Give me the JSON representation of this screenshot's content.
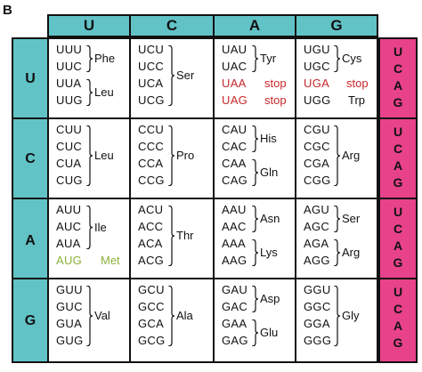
{
  "panel_label": "B",
  "column_headers": [
    "U",
    "C",
    "A",
    "G"
  ],
  "row_headers": [
    "U",
    "C",
    "A",
    "G"
  ],
  "third_position_labels": [
    "U",
    "C",
    "A",
    "G"
  ],
  "colors": {
    "header_teal": "#62c3c7",
    "third_pink": "#e8428a",
    "stop_red": "#c8262b",
    "start_green": "#8ab23a"
  },
  "cells": [
    [
      {
        "codons": [
          "UUU",
          "UUC",
          "UUA",
          "UUG"
        ],
        "groups": [
          {
            "range": [
              0,
              1
            ],
            "aa": "Phe"
          },
          {
            "range": [
              2,
              3
            ],
            "aa": "Leu"
          }
        ]
      },
      {
        "codons": [
          "UCU",
          "UCC",
          "UCA",
          "UCG"
        ],
        "groups": [
          {
            "range": [
              0,
              3
            ],
            "aa": "Ser"
          }
        ]
      },
      {
        "codons": [
          "UAU",
          "UAC",
          "UAA",
          "UAG"
        ],
        "groups": [
          {
            "range": [
              0,
              1
            ],
            "aa": "Tyr"
          },
          {
            "range": [
              2,
              2
            ],
            "aa": "stop",
            "style": "red"
          },
          {
            "range": [
              3,
              3
            ],
            "aa": "stop",
            "style": "red"
          }
        ]
      },
      {
        "codons": [
          "UGU",
          "UGC",
          "UGA",
          "UGG"
        ],
        "groups": [
          {
            "range": [
              0,
              1
            ],
            "aa": "Cys"
          },
          {
            "range": [
              2,
              2
            ],
            "aa": "stop",
            "style": "red"
          },
          {
            "range": [
              3,
              3
            ],
            "aa": "Trp"
          }
        ]
      }
    ],
    [
      {
        "codons": [
          "CUU",
          "CUC",
          "CUA",
          "CUG"
        ],
        "groups": [
          {
            "range": [
              0,
              3
            ],
            "aa": "Leu"
          }
        ]
      },
      {
        "codons": [
          "CCU",
          "CCC",
          "CCA",
          "CCG"
        ],
        "groups": [
          {
            "range": [
              0,
              3
            ],
            "aa": "Pro"
          }
        ]
      },
      {
        "codons": [
          "CAU",
          "CAC",
          "CAA",
          "CAG"
        ],
        "groups": [
          {
            "range": [
              0,
              1
            ],
            "aa": "His"
          },
          {
            "range": [
              2,
              3
            ],
            "aa": "Gln"
          }
        ]
      },
      {
        "codons": [
          "CGU",
          "CGC",
          "CGA",
          "CGG"
        ],
        "groups": [
          {
            "range": [
              0,
              3
            ],
            "aa": "Arg"
          }
        ]
      }
    ],
    [
      {
        "codons": [
          "AUU",
          "AUC",
          "AUA",
          "AUG"
        ],
        "groups": [
          {
            "range": [
              0,
              2
            ],
            "aa": "Ile"
          },
          {
            "range": [
              3,
              3
            ],
            "aa": "Met",
            "style": "green"
          }
        ]
      },
      {
        "codons": [
          "ACU",
          "ACC",
          "ACA",
          "ACG"
        ],
        "groups": [
          {
            "range": [
              0,
              3
            ],
            "aa": "Thr"
          }
        ]
      },
      {
        "codons": [
          "AAU",
          "AAC",
          "AAA",
          "AAG"
        ],
        "groups": [
          {
            "range": [
              0,
              1
            ],
            "aa": "Asn"
          },
          {
            "range": [
              2,
              3
            ],
            "aa": "Lys"
          }
        ]
      },
      {
        "codons": [
          "AGU",
          "AGC",
          "AGA",
          "AGG"
        ],
        "groups": [
          {
            "range": [
              0,
              1
            ],
            "aa": "Ser"
          },
          {
            "range": [
              2,
              3
            ],
            "aa": "Arg"
          }
        ]
      }
    ],
    [
      {
        "codons": [
          "GUU",
          "GUC",
          "GUA",
          "GUG"
        ],
        "groups": [
          {
            "range": [
              0,
              3
            ],
            "aa": "Val"
          }
        ]
      },
      {
        "codons": [
          "GCU",
          "GCC",
          "GCA",
          "GCG"
        ],
        "groups": [
          {
            "range": [
              0,
              3
            ],
            "aa": "Ala"
          }
        ]
      },
      {
        "codons": [
          "GAU",
          "GAC",
          "GAA",
          "GAG"
        ],
        "groups": [
          {
            "range": [
              0,
              1
            ],
            "aa": "Asp"
          },
          {
            "range": [
              2,
              3
            ],
            "aa": "Glu"
          }
        ]
      },
      {
        "codons": [
          "GGU",
          "GGC",
          "GGA",
          "GGG"
        ],
        "groups": [
          {
            "range": [
              0,
              3
            ],
            "aa": "Gly"
          }
        ]
      }
    ]
  ]
}
